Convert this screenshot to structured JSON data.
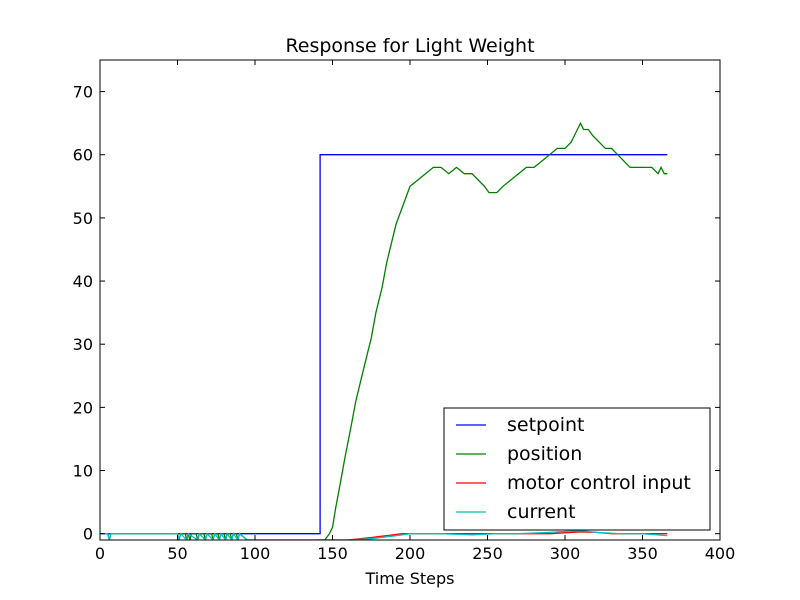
{
  "chart_data": {
    "type": "line",
    "title": "Response for Light Weight",
    "xlabel": "Time Steps",
    "ylabel": "",
    "xlim": [
      0,
      400
    ],
    "ylim": [
      -1,
      75
    ],
    "xticks": [
      0,
      50,
      100,
      150,
      200,
      250,
      300,
      350,
      400
    ],
    "yticks": [
      0,
      10,
      20,
      30,
      40,
      50,
      60,
      70
    ],
    "grid": false,
    "legend_position": "lower-right",
    "series": [
      {
        "name": "setpoint",
        "color": "#0000ff",
        "points": [
          [
            0,
            0
          ],
          [
            142,
            0
          ],
          [
            142,
            60
          ],
          [
            366,
            60
          ]
        ]
      },
      {
        "name": "position",
        "color": "#008000",
        "points": [
          [
            0,
            0
          ],
          [
            5,
            0
          ],
          [
            6,
            -1
          ],
          [
            7,
            0
          ],
          [
            50,
            0
          ],
          [
            51,
            -1
          ],
          [
            52,
            0
          ],
          [
            55,
            0
          ],
          [
            56,
            -1
          ],
          [
            57,
            0
          ],
          [
            58,
            -1
          ],
          [
            59,
            0
          ],
          [
            62,
            0
          ],
          [
            63,
            -1
          ],
          [
            64,
            0
          ],
          [
            67,
            0
          ],
          [
            68,
            -1
          ],
          [
            69,
            0
          ],
          [
            72,
            0
          ],
          [
            73,
            -1
          ],
          [
            74,
            0
          ],
          [
            76,
            0
          ],
          [
            77,
            -1
          ],
          [
            78,
            0
          ],
          [
            80,
            0
          ],
          [
            81,
            -1
          ],
          [
            82,
            0
          ],
          [
            84,
            0
          ],
          [
            85,
            -1
          ],
          [
            86,
            0
          ],
          [
            88,
            0
          ],
          [
            89,
            -1
          ],
          [
            90,
            0
          ],
          [
            95,
            -1
          ],
          [
            140,
            -1
          ],
          [
            145,
            -1
          ],
          [
            148,
            0
          ],
          [
            150,
            1
          ],
          [
            152,
            4
          ],
          [
            155,
            8
          ],
          [
            158,
            12
          ],
          [
            162,
            17
          ],
          [
            165,
            21
          ],
          [
            168,
            24
          ],
          [
            172,
            28
          ],
          [
            175,
            31
          ],
          [
            178,
            35
          ],
          [
            182,
            39
          ],
          [
            185,
            43
          ],
          [
            188,
            46
          ],
          [
            191,
            49
          ],
          [
            194,
            51
          ],
          [
            197,
            53
          ],
          [
            200,
            55
          ],
          [
            205,
            56
          ],
          [
            210,
            57
          ],
          [
            215,
            58
          ],
          [
            220,
            58
          ],
          [
            225,
            57
          ],
          [
            230,
            58
          ],
          [
            235,
            57
          ],
          [
            240,
            57
          ],
          [
            244,
            56
          ],
          [
            248,
            55
          ],
          [
            251,
            54
          ],
          [
            256,
            54
          ],
          [
            260,
            55
          ],
          [
            265,
            56
          ],
          [
            270,
            57
          ],
          [
            275,
            58
          ],
          [
            280,
            58
          ],
          [
            285,
            59
          ],
          [
            290,
            60
          ],
          [
            295,
            61
          ],
          [
            300,
            61
          ],
          [
            304,
            62
          ],
          [
            308,
            64
          ],
          [
            310,
            65
          ],
          [
            312,
            64
          ],
          [
            315,
            64
          ],
          [
            318,
            63
          ],
          [
            322,
            62
          ],
          [
            326,
            61
          ],
          [
            330,
            61
          ],
          [
            334,
            60
          ],
          [
            338,
            59
          ],
          [
            342,
            58
          ],
          [
            346,
            58
          ],
          [
            350,
            58
          ],
          [
            356,
            58
          ],
          [
            360,
            57
          ],
          [
            362,
            58
          ],
          [
            364,
            57
          ],
          [
            366,
            57
          ]
        ]
      },
      {
        "name": "motor control input",
        "color": "#ff0000",
        "points": [
          [
            140,
            -1
          ],
          [
            160,
            -1
          ],
          [
            175,
            -0.6
          ],
          [
            185,
            -0.3
          ],
          [
            195,
            0
          ],
          [
            210,
            0
          ],
          [
            230,
            0
          ],
          [
            250,
            0
          ],
          [
            270,
            0
          ],
          [
            290,
            0
          ],
          [
            310,
            0.3
          ],
          [
            320,
            0.2
          ],
          [
            330,
            0
          ],
          [
            340,
            0
          ],
          [
            355,
            0
          ],
          [
            366,
            0
          ]
        ]
      },
      {
        "name": "current",
        "color": "#00bfbf",
        "points": [
          [
            0,
            0
          ],
          [
            5,
            0
          ],
          [
            6,
            -1
          ],
          [
            7,
            0
          ],
          [
            50,
            0
          ],
          [
            51,
            -1
          ],
          [
            52,
            0
          ],
          [
            56,
            -1
          ],
          [
            57,
            0
          ],
          [
            63,
            -1
          ],
          [
            64,
            0
          ],
          [
            68,
            -1
          ],
          [
            69,
            0
          ],
          [
            73,
            -1
          ],
          [
            74,
            0
          ],
          [
            77,
            -1
          ],
          [
            78,
            0
          ],
          [
            81,
            -1
          ],
          [
            82,
            0
          ],
          [
            85,
            -1
          ],
          [
            86,
            0
          ],
          [
            89,
            -1
          ],
          [
            90,
            0
          ],
          [
            95,
            -1
          ],
          [
            140,
            -1
          ],
          [
            160,
            -1
          ],
          [
            175,
            -0.8
          ],
          [
            185,
            -0.5
          ],
          [
            195,
            -0.2
          ],
          [
            200,
            0
          ],
          [
            220,
            0
          ],
          [
            240,
            -0.2
          ],
          [
            255,
            0
          ],
          [
            270,
            0
          ],
          [
            290,
            0.2
          ],
          [
            310,
            0.5
          ],
          [
            320,
            0.2
          ],
          [
            335,
            0
          ],
          [
            350,
            0
          ],
          [
            366,
            -0.3
          ]
        ]
      }
    ]
  }
}
